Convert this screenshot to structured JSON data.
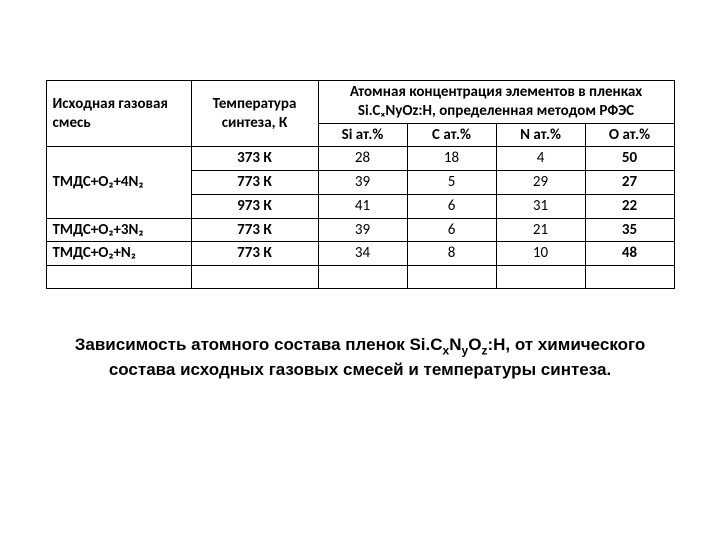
{
  "table": {
    "header": {
      "mix": "Исходная газовая смесь",
      "temp": "Температура синтеза, К",
      "concentration_title": "Атомная концентрация элементов в пленках Si.CₓNyOz:H, определенная методом РФЭС",
      "si": "Si ат.%",
      "c": "С ат.%",
      "n": "N ат.%",
      "o": "О ат.%"
    },
    "rows": [
      {
        "mix": "ТМДС+О₂+4N₂",
        "temp": "373 К",
        "si": "28",
        "c": "18",
        "n": "4",
        "o": "50",
        "show_mix": true
      },
      {
        "mix": "",
        "temp": "773 К",
        "si": "39",
        "c": "5",
        "n": "29",
        "o": "27",
        "show_mix": false
      },
      {
        "mix": "",
        "temp": "973 К",
        "si": "41",
        "c": "6",
        "n": "31",
        "o": "22",
        "show_mix": false
      },
      {
        "mix": "ТМДС+О₂+3N₂",
        "temp": "773 К",
        "si": "39",
        "c": "6",
        "n": "21",
        "o": "35",
        "show_mix": true
      },
      {
        "mix": "ТМДС+О₂+N₂",
        "temp": "773 К",
        "si": "34",
        "c": "8",
        "n": "10",
        "o": "48",
        "show_mix": true
      }
    ]
  },
  "caption": {
    "l1a": "Зависимость атомного состава пленок Si.C",
    "sub_x": "x",
    "mid1": "N",
    "sub_y": "y",
    "mid2": "O",
    "sub_z": "z",
    "l1b": ":H, от химического",
    "l2": "состава исходных газовых смесей и температуры синтеза."
  }
}
